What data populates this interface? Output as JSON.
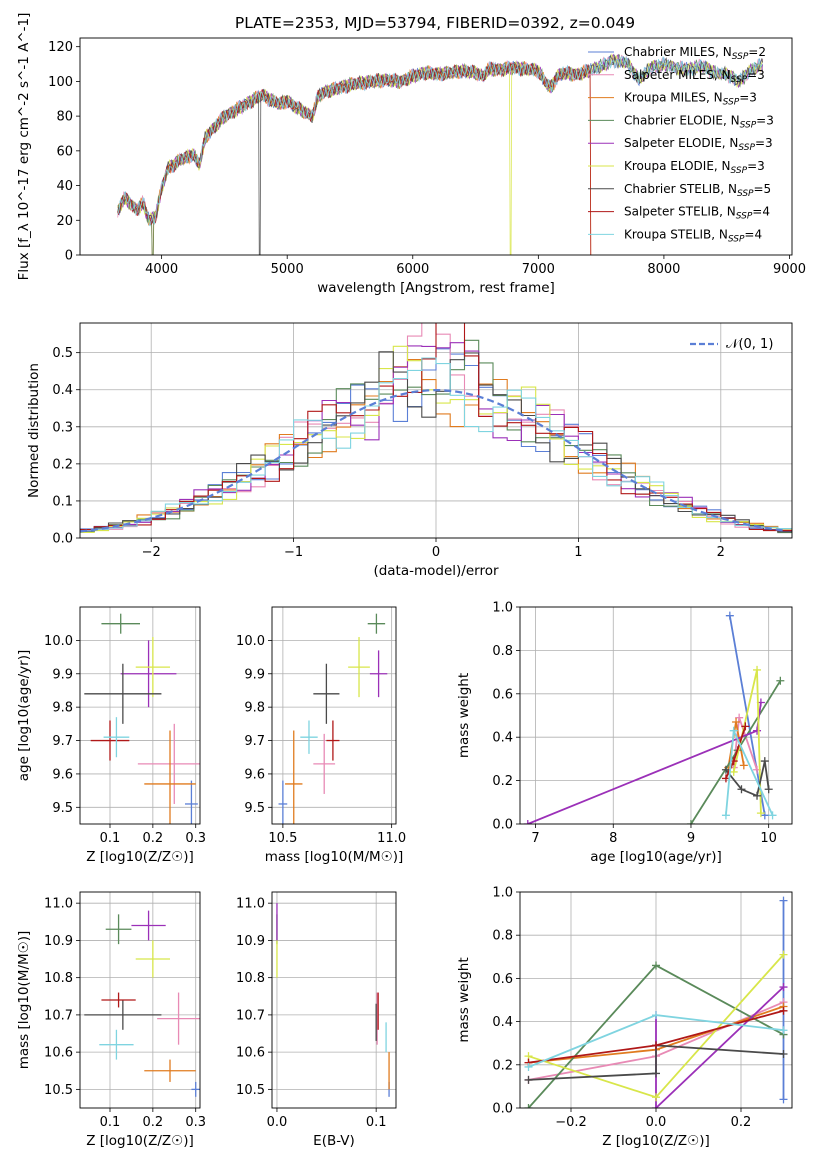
{
  "figure": {
    "title": "PLATE=2353, MJD=53794, FIBERID=0392, z=0.049"
  },
  "chart_data": [
    {
      "id": "spectrum",
      "type": "line",
      "title": "PLATE=2353, MJD=53794, FIBERID=0392, z=0.049",
      "xlabel": "wavelength [Angstrom, rest frame]",
      "ylabel": "Flux [f_λ 10^-17 erg cm^-2 s^-1 A^-1]",
      "xlim": [
        3350,
        9020
      ],
      "ylim": [
        0,
        125
      ],
      "xticks": [
        4000,
        5000,
        6000,
        7000,
        8000,
        9000
      ],
      "yticks": [
        0,
        20,
        40,
        60,
        80,
        100,
        120
      ],
      "grid": false,
      "legend_position": "top-right",
      "data_anchor_points": [
        [
          3650,
          25
        ],
        [
          3700,
          33
        ],
        [
          3750,
          30
        ],
        [
          3800,
          26
        ],
        [
          3850,
          30
        ],
        [
          3900,
          20
        ],
        [
          3950,
          22
        ],
        [
          4000,
          38
        ],
        [
          4050,
          50
        ],
        [
          4100,
          52
        ],
        [
          4150,
          55
        ],
        [
          4200,
          56
        ],
        [
          4250,
          58
        ],
        [
          4300,
          52
        ],
        [
          4350,
          68
        ],
        [
          4400,
          72
        ],
        [
          4450,
          76
        ],
        [
          4500,
          80
        ],
        [
          4550,
          82
        ],
        [
          4600,
          84
        ],
        [
          4650,
          86
        ],
        [
          4700,
          88
        ],
        [
          4750,
          90
        ],
        [
          4800,
          92
        ],
        [
          4850,
          90
        ],
        [
          4900,
          88
        ],
        [
          4950,
          87
        ],
        [
          5000,
          89
        ],
        [
          5050,
          86
        ],
        [
          5100,
          84
        ],
        [
          5150,
          82
        ],
        [
          5200,
          80
        ],
        [
          5250,
          92
        ],
        [
          5300,
          94
        ],
        [
          5400,
          96
        ],
        [
          5500,
          98
        ],
        [
          5600,
          99
        ],
        [
          5700,
          100
        ],
        [
          5800,
          101
        ],
        [
          5900,
          100
        ],
        [
          6000,
          103
        ],
        [
          6100,
          105
        ],
        [
          6200,
          104
        ],
        [
          6300,
          105
        ],
        [
          6400,
          106
        ],
        [
          6500,
          105
        ],
        [
          6560,
          103
        ],
        [
          6600,
          107
        ],
        [
          6700,
          107
        ],
        [
          6800,
          108
        ],
        [
          6900,
          107
        ],
        [
          7000,
          106
        ],
        [
          7050,
          100
        ],
        [
          7100,
          96
        ],
        [
          7150,
          103
        ],
        [
          7200,
          105
        ],
        [
          7300,
          104
        ],
        [
          7400,
          106
        ],
        [
          7500,
          109
        ],
        [
          7600,
          112
        ],
        [
          7700,
          111
        ],
        [
          7800,
          101
        ],
        [
          7900,
          108
        ],
        [
          8000,
          110
        ],
        [
          8100,
          108
        ],
        [
          8200,
          107
        ],
        [
          8300,
          109
        ],
        [
          8400,
          105
        ],
        [
          8500,
          104
        ],
        [
          8600,
          100
        ],
        [
          8700,
          107
        ],
        [
          8790,
          110
        ]
      ],
      "series": [
        {
          "name": "Chabrier MILES, N_SSP=2",
          "color": "#5b7fd6"
        },
        {
          "name": "Salpeter MILES, N_SSP=3",
          "color": "#e88ab5"
        },
        {
          "name": "Kroupa MILES, N_SSP=3",
          "color": "#e07b1f"
        },
        {
          "name": "Chabrier ELODIE, N_SSP=3",
          "color": "#5a8a5a"
        },
        {
          "name": "Salpeter ELODIE, N_SSP=3",
          "color": "#9b30b8"
        },
        {
          "name": "Kroupa ELODIE, N_SSP=3",
          "color": "#d8e64a"
        },
        {
          "name": "Chabrier STELIB, N_SSP=5",
          "color": "#4a4a4a"
        },
        {
          "name": "Salpeter STELIB, N_SSP=4",
          "color": "#b01818"
        },
        {
          "name": "Kroupa STELIB, N_SSP=4",
          "color": "#7fd4e0"
        }
      ]
    },
    {
      "id": "residuals",
      "type": "line",
      "xlabel": "(data-model)/error",
      "ylabel": "Normed distribution",
      "xlim": [
        -2.5,
        2.5
      ],
      "ylim": [
        0,
        0.58
      ],
      "xticks": [
        -2,
        -1,
        0,
        1,
        2
      ],
      "yticks": [
        0.0,
        0.1,
        0.2,
        0.3,
        0.4,
        0.5
      ],
      "grid": true,
      "legend_position": "top-right",
      "reference_curve": {
        "name": "N(0,1)",
        "color": "#5b7fd6",
        "style": "dashed"
      },
      "bin_width": 0.1,
      "histogram_series_colors": [
        "#5b7fd6",
        "#e88ab5",
        "#e07b1f",
        "#5a8a5a",
        "#9b30b8",
        "#d8e64a",
        "#4a4a4a",
        "#b01818",
        "#7fd4e0"
      ]
    },
    {
      "id": "age_vs_Z",
      "type": "scatter",
      "xlabel": "Z [log10(Z/Z☉)]",
      "ylabel": "age [log10(age/yr)]",
      "xlim": [
        0.03,
        0.31
      ],
      "ylim": [
        9.45,
        10.1
      ],
      "xticks": [
        0.1,
        0.2,
        0.3
      ],
      "yticks": [
        9.5,
        9.6,
        9.7,
        9.8,
        9.9,
        10.0
      ],
      "grid": true,
      "points": [
        {
          "color": "#5b7fd6",
          "x": 0.29,
          "y": 9.51,
          "xerr": 0.015,
          "yerr": 0.07
        },
        {
          "color": "#e88ab5",
          "x": 0.25,
          "y": 9.63,
          "xerr": 0.085,
          "yerr": 0.12
        },
        {
          "color": "#e07b1f",
          "x": 0.24,
          "y": 9.57,
          "xerr": 0.06,
          "yerr": 0.16
        },
        {
          "color": "#5a8a5a",
          "x": 0.125,
          "y": 10.05,
          "xerr": 0.045,
          "yerr": 0.03
        },
        {
          "color": "#9b30b8",
          "x": 0.19,
          "y": 9.9,
          "xerr": 0.065,
          "yerr": 0.1
        },
        {
          "color": "#d8e64a",
          "x": 0.2,
          "y": 9.92,
          "xerr": 0.04,
          "yerr": 0.09
        },
        {
          "color": "#4a4a4a",
          "x": 0.13,
          "y": 9.84,
          "xerr": 0.09,
          "yerr": 0.09
        },
        {
          "color": "#b01818",
          "x": 0.1,
          "y": 9.7,
          "xerr": 0.045,
          "yerr": 0.06
        },
        {
          "color": "#7fd4e0",
          "x": 0.115,
          "y": 9.71,
          "xerr": 0.03,
          "yerr": 0.06
        }
      ]
    },
    {
      "id": "age_vs_mass",
      "type": "scatter",
      "xlabel": "mass [log10(M/M☉)]",
      "ylabel": "",
      "xlim": [
        10.45,
        11.02
      ],
      "ylim": [
        9.45,
        10.1
      ],
      "xticks": [
        10.5,
        11.0
      ],
      "yticks": [
        9.5,
        9.6,
        9.7,
        9.8,
        9.9,
        10.0
      ],
      "grid": true,
      "points": [
        {
          "color": "#5b7fd6",
          "x": 10.5,
          "y": 9.51,
          "xerr": 0.02,
          "yerr": 0.07
        },
        {
          "color": "#e88ab5",
          "x": 10.69,
          "y": 9.63,
          "xerr": 0.05,
          "yerr": 0.09
        },
        {
          "color": "#e07b1f",
          "x": 10.55,
          "y": 9.57,
          "xerr": 0.04,
          "yerr": 0.16
        },
        {
          "color": "#5a8a5a",
          "x": 10.93,
          "y": 10.05,
          "xerr": 0.04,
          "yerr": 0.03
        },
        {
          "color": "#9b30b8",
          "x": 10.94,
          "y": 9.9,
          "xerr": 0.04,
          "yerr": 0.07
        },
        {
          "color": "#d8e64a",
          "x": 10.85,
          "y": 9.92,
          "xerr": 0.05,
          "yerr": 0.09
        },
        {
          "color": "#4a4a4a",
          "x": 10.7,
          "y": 9.84,
          "xerr": 0.06,
          "yerr": 0.09
        },
        {
          "color": "#b01818",
          "x": 10.73,
          "y": 9.7,
          "xerr": 0.03,
          "yerr": 0.06
        },
        {
          "color": "#7fd4e0",
          "x": 10.62,
          "y": 9.71,
          "xerr": 0.04,
          "yerr": 0.05
        }
      ]
    },
    {
      "id": "massweight_vs_age",
      "type": "line",
      "xlabel": "age [log10(age/yr)]",
      "ylabel": "mass weight",
      "xlim": [
        6.8,
        10.3
      ],
      "ylim": [
        0,
        1.0
      ],
      "xticks": [
        7,
        8,
        9,
        10
      ],
      "yticks": [
        0.0,
        0.2,
        0.4,
        0.6,
        0.8,
        1.0
      ],
      "grid": true,
      "series": [
        {
          "color": "#5b7fd6",
          "x": [
            9.5,
            9.95
          ],
          "y": [
            0.96,
            0.04
          ]
        },
        {
          "color": "#e88ab5",
          "x": [
            9.55,
            9.62,
            9.85
          ],
          "y": [
            0.26,
            0.49,
            0.25
          ]
        },
        {
          "color": "#e07b1f",
          "x": [
            9.48,
            9.58,
            9.68
          ],
          "y": [
            0.26,
            0.47,
            0.27
          ]
        },
        {
          "color": "#5a8a5a",
          "x": [
            9.0,
            9.6,
            10.15
          ],
          "y": [
            0.0,
            0.34,
            0.66
          ]
        },
        {
          "color": "#9b30b8",
          "x": [
            6.9,
            9.85,
            9.9
          ],
          "y": [
            0.0,
            0.43,
            0.56
          ]
        },
        {
          "color": "#d8e64a",
          "x": [
            9.55,
            9.85,
            9.9
          ],
          "y": [
            0.24,
            0.71,
            0.05
          ]
        },
        {
          "color": "#4a4a4a",
          "x": [
            9.45,
            9.65,
            9.85,
            9.95,
            10.0
          ],
          "y": [
            0.25,
            0.16,
            0.13,
            0.29,
            0.16
          ]
        },
        {
          "color": "#b01818",
          "x": [
            9.45,
            9.55,
            9.7
          ],
          "y": [
            0.21,
            0.29,
            0.45
          ]
        },
        {
          "color": "#7fd4e0",
          "x": [
            9.45,
            9.55,
            10.05
          ],
          "y": [
            0.04,
            0.43,
            0.04
          ]
        }
      ]
    },
    {
      "id": "mass_vs_Z",
      "type": "scatter",
      "xlabel": "Z [log10(Z/Z☉)]",
      "ylabel": "mass [log10(M/M☉)]",
      "xlim": [
        0.03,
        0.31
      ],
      "ylim": [
        10.45,
        11.03
      ],
      "xticks": [
        0.1,
        0.2,
        0.3
      ],
      "yticks": [
        10.5,
        10.6,
        10.7,
        10.8,
        10.9,
        11.0
      ],
      "grid": true,
      "points": [
        {
          "color": "#5b7fd6",
          "x": 0.3,
          "y": 10.5,
          "xerr": 0.01,
          "yerr": 0.02
        },
        {
          "color": "#e88ab5",
          "x": 0.26,
          "y": 10.69,
          "xerr": 0.05,
          "yerr": 0.07
        },
        {
          "color": "#e07b1f",
          "x": 0.24,
          "y": 10.55,
          "xerr": 0.06,
          "yerr": 0.03
        },
        {
          "color": "#5a8a5a",
          "x": 0.12,
          "y": 10.93,
          "xerr": 0.03,
          "yerr": 0.04
        },
        {
          "color": "#9b30b8",
          "x": 0.19,
          "y": 10.94,
          "xerr": 0.04,
          "yerr": 0.04
        },
        {
          "color": "#d8e64a",
          "x": 0.2,
          "y": 10.85,
          "xerr": 0.04,
          "yerr": 0.05
        },
        {
          "color": "#4a4a4a",
          "x": 0.13,
          "y": 10.7,
          "xerr": 0.09,
          "yerr": 0.04
        },
        {
          "color": "#b01818",
          "x": 0.12,
          "y": 10.74,
          "xerr": 0.04,
          "yerr": 0.02
        },
        {
          "color": "#7fd4e0",
          "x": 0.115,
          "y": 10.62,
          "xerr": 0.04,
          "yerr": 0.04
        }
      ]
    },
    {
      "id": "mass_vs_ebv",
      "type": "scatter",
      "xlabel": "E(B-V)",
      "ylabel": "",
      "xlim": [
        -0.005,
        0.12
      ],
      "ylim": [
        10.45,
        11.03
      ],
      "xticks": [
        0.0,
        0.1
      ],
      "yticks": [
        10.5,
        10.6,
        10.7,
        10.8,
        10.9,
        11.0
      ],
      "grid": true,
      "points": [
        {
          "color": "#5b7fd6",
          "x": 0.113,
          "y": 10.5,
          "xerr": 0.0,
          "yerr": 0.02
        },
        {
          "color": "#e88ab5",
          "x": 0.101,
          "y": 10.69,
          "xerr": 0.0,
          "yerr": 0.07
        },
        {
          "color": "#e07b1f",
          "x": 0.113,
          "y": 10.55,
          "xerr": 0.0,
          "yerr": 0.05
        },
        {
          "color": "#5a8a5a",
          "x": 0.0,
          "y": 10.93,
          "xerr": 0.0,
          "yerr": 0.04
        },
        {
          "color": "#9b30b8",
          "x": 0.0,
          "y": 10.95,
          "xerr": 0.0,
          "yerr": 0.05
        },
        {
          "color": "#d8e64a",
          "x": 0.0,
          "y": 10.85,
          "xerr": 0.0,
          "yerr": 0.05
        },
        {
          "color": "#4a4a4a",
          "x": 0.1,
          "y": 10.68,
          "xerr": 0.0,
          "yerr": 0.05
        },
        {
          "color": "#b01818",
          "x": 0.102,
          "y": 10.71,
          "xerr": 0.0,
          "yerr": 0.05
        },
        {
          "color": "#7fd4e0",
          "x": 0.11,
          "y": 10.64,
          "xerr": 0.0,
          "yerr": 0.04
        }
      ]
    },
    {
      "id": "massweight_vs_Z",
      "type": "line",
      "xlabel": "Z [log10(Z/Z☉)]",
      "ylabel": "mass weight",
      "xlim": [
        -0.32,
        0.32
      ],
      "ylim": [
        0,
        1.0
      ],
      "xticks": [
        -0.2,
        0.0,
        0.2
      ],
      "yticks": [
        0.0,
        0.2,
        0.4,
        0.6,
        0.8,
        1.0
      ],
      "grid": true,
      "series": [
        {
          "color": "#5b7fd6",
          "x": [
            0.3,
            0.3
          ],
          "y": [
            0.04,
            0.96
          ]
        },
        {
          "color": "#e88ab5",
          "x": [
            -0.3,
            0.0,
            0.3
          ],
          "y": [
            0.13,
            0.24,
            0.49
          ]
        },
        {
          "color": "#e07b1f",
          "x": [
            -0.3,
            0.0,
            0.3
          ],
          "y": [
            0.21,
            0.27,
            0.47
          ]
        },
        {
          "color": "#5a8a5a",
          "x": [
            -0.3,
            0.0,
            0.3
          ],
          "y": [
            0.0,
            0.66,
            0.34
          ]
        },
        {
          "color": "#9b30b8",
          "x": [
            0.0,
            0.0,
            0.3
          ],
          "y": [
            0.43,
            0.0,
            0.56
          ]
        },
        {
          "color": "#d8e64a",
          "x": [
            -0.3,
            0.0,
            0.3
          ],
          "y": [
            0.24,
            0.05,
            0.71
          ]
        },
        {
          "color": "#4a4a4a",
          "x": [
            -0.3,
            0.0,
            0.0,
            0.3
          ],
          "y": [
            0.13,
            0.16,
            0.29,
            0.25
          ]
        },
        {
          "color": "#b01818",
          "x": [
            -0.3,
            0.0,
            0.3
          ],
          "y": [
            0.21,
            0.29,
            0.45
          ]
        },
        {
          "color": "#7fd4e0",
          "x": [
            -0.3,
            0.0,
            0.3
          ],
          "y": [
            0.19,
            0.43,
            0.36
          ]
        }
      ]
    }
  ]
}
